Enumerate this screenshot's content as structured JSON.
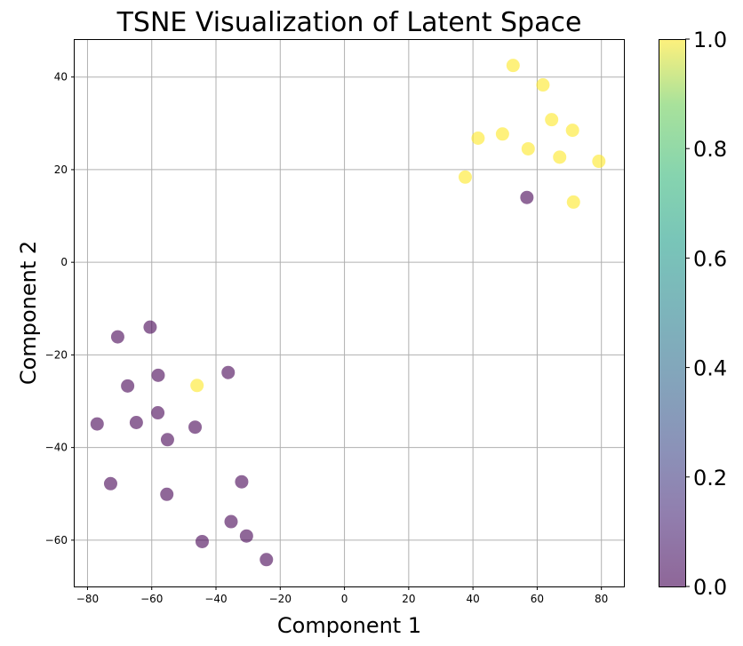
{
  "chart_data": {
    "type": "scatter",
    "title": "TSNE Visualization of Latent Space",
    "xlabel": "Component 1",
    "ylabel": "Component 2",
    "xlim": [
      -84,
      87
    ],
    "ylim": [
      -70,
      48
    ],
    "xticks": [
      -80,
      -60,
      -40,
      -20,
      0,
      20,
      40,
      60,
      80
    ],
    "yticks": [
      -60,
      -40,
      -20,
      0,
      20,
      40
    ],
    "grid": true,
    "colormap": "viridis",
    "alpha": 0.6,
    "colorbar": {
      "range": [
        0.0,
        1.0
      ],
      "ticks": [
        "0.0",
        "0.2",
        "0.4",
        "0.6",
        "0.8",
        "1.0"
      ]
    },
    "points": [
      {
        "x": 52.5,
        "y": 42.5,
        "c": 1
      },
      {
        "x": 61.8,
        "y": 38.3,
        "c": 1
      },
      {
        "x": 64.5,
        "y": 30.8,
        "c": 1
      },
      {
        "x": 71.0,
        "y": 28.5,
        "c": 1
      },
      {
        "x": 49.2,
        "y": 27.7,
        "c": 1
      },
      {
        "x": 41.6,
        "y": 26.8,
        "c": 1
      },
      {
        "x": 57.2,
        "y": 24.5,
        "c": 1
      },
      {
        "x": 67.0,
        "y": 22.7,
        "c": 1
      },
      {
        "x": 79.2,
        "y": 21.8,
        "c": 1
      },
      {
        "x": 37.6,
        "y": 18.4,
        "c": 1
      },
      {
        "x": 71.3,
        "y": 13.0,
        "c": 1
      },
      {
        "x": 56.8,
        "y": 14.0,
        "c": 0
      },
      {
        "x": -45.9,
        "y": -26.6,
        "c": 1
      },
      {
        "x": -60.5,
        "y": -14.0,
        "c": 0
      },
      {
        "x": -70.6,
        "y": -16.1,
        "c": 0
      },
      {
        "x": -58.0,
        "y": -24.4,
        "c": 0
      },
      {
        "x": -36.2,
        "y": -23.8,
        "c": 0
      },
      {
        "x": -67.5,
        "y": -26.7,
        "c": 0
      },
      {
        "x": -58.1,
        "y": -32.5,
        "c": 0
      },
      {
        "x": -77.0,
        "y": -34.9,
        "c": 0
      },
      {
        "x": -64.8,
        "y": -34.6,
        "c": 0
      },
      {
        "x": -46.5,
        "y": -35.6,
        "c": 0
      },
      {
        "x": -55.1,
        "y": -38.3,
        "c": 0
      },
      {
        "x": -72.8,
        "y": -47.8,
        "c": 0
      },
      {
        "x": -55.3,
        "y": -50.1,
        "c": 0
      },
      {
        "x": -32.0,
        "y": -47.4,
        "c": 0
      },
      {
        "x": -35.3,
        "y": -56.0,
        "c": 0
      },
      {
        "x": -30.5,
        "y": -59.1,
        "c": 0
      },
      {
        "x": -44.3,
        "y": -60.3,
        "c": 0
      },
      {
        "x": -24.3,
        "y": -64.2,
        "c": 0
      }
    ]
  }
}
